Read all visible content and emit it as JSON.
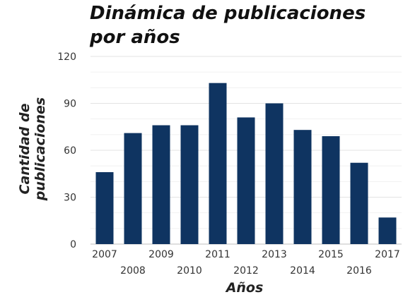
{
  "chart_data": {
    "type": "bar",
    "title": "Dinámica de publicaciones por años",
    "xlabel": "Años",
    "ylabel_lines": [
      "Cantidad de",
      "publicaciones"
    ],
    "categories": [
      "2007",
      "2008",
      "2009",
      "2010",
      "2011",
      "2012",
      "2013",
      "2014",
      "2015",
      "2016",
      "2017"
    ],
    "values": [
      46,
      71,
      76,
      76,
      103,
      81,
      90,
      73,
      69,
      52,
      17
    ],
    "yticks": [
      "0",
      "30",
      "60",
      "90",
      "120"
    ],
    "ylim": [
      0,
      120
    ],
    "grid": true,
    "legend": "none",
    "bar_color": "#0f3461",
    "grid_color": "#e3e3e3"
  }
}
